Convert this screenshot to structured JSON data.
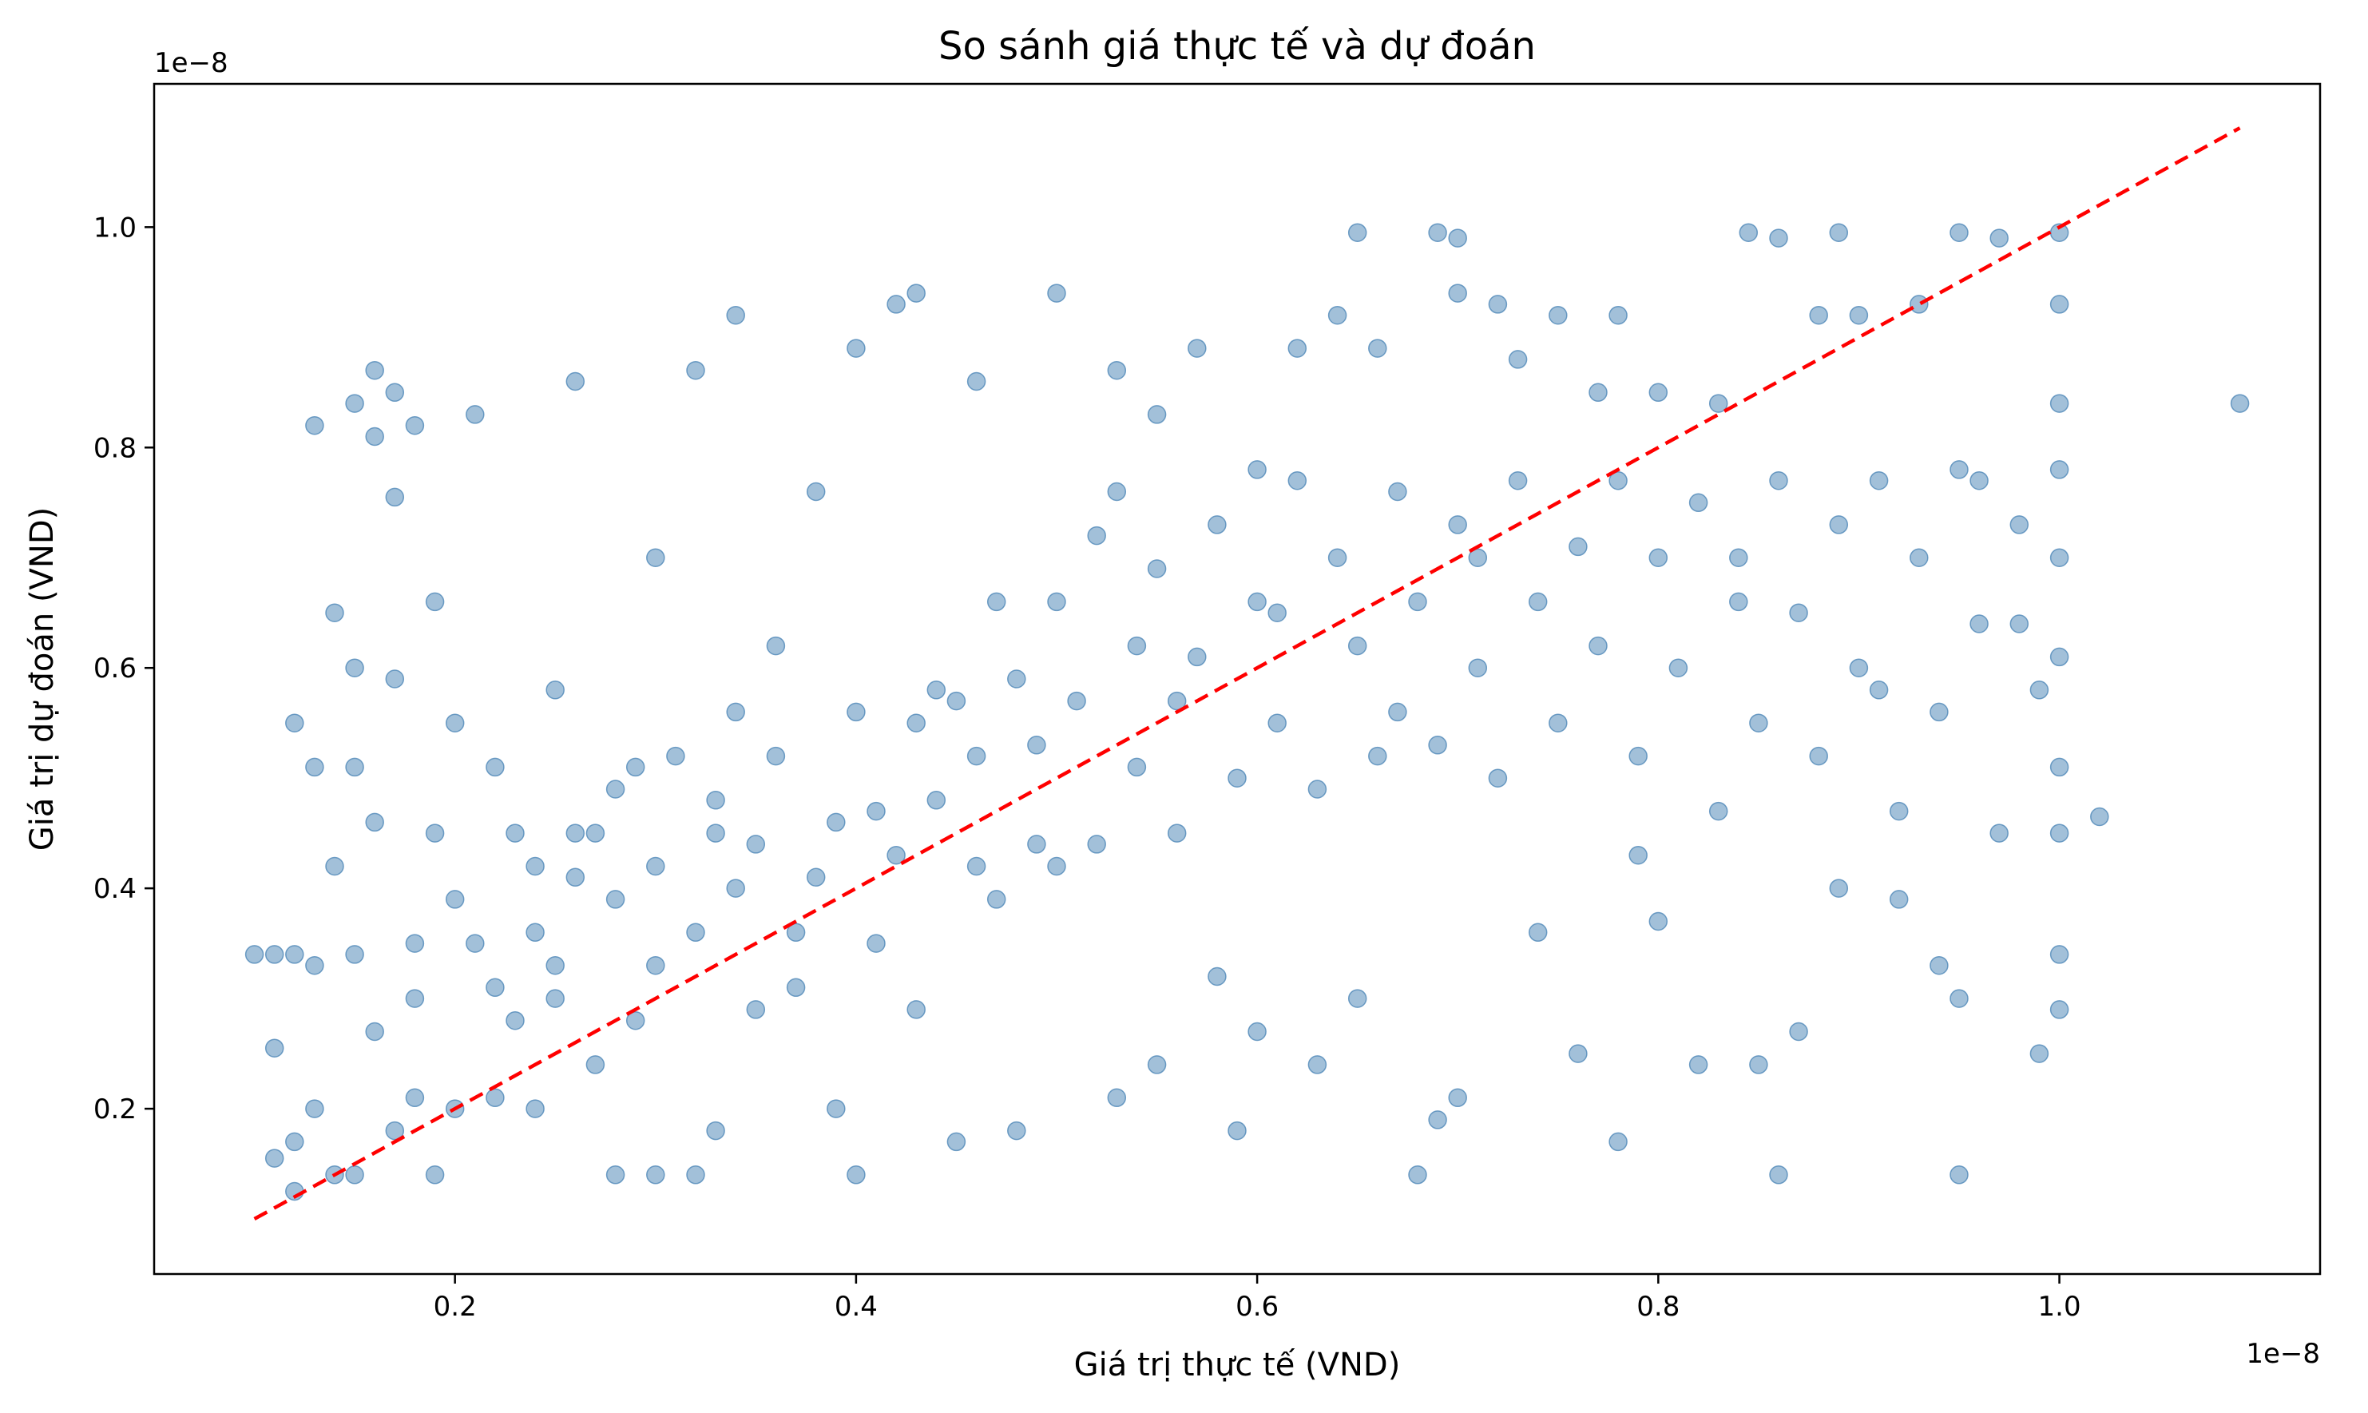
{
  "chart_data": {
    "type": "scatter",
    "title": "So sánh giá thực tế và dự đoán",
    "xlabel": "Giá trị thực tế (VND)",
    "ylabel": "Giá trị dự đoán (VND)",
    "x_offset_label": "1e−8",
    "y_offset_label": "1e−8",
    "xlim": [
      0.05,
      1.13
    ],
    "ylim": [
      0.05,
      1.13
    ],
    "xticks": [
      0.2,
      0.4,
      0.6,
      0.8,
      1.0
    ],
    "yticks": [
      0.2,
      0.4,
      0.6,
      0.8,
      1.0
    ],
    "xtick_labels": [
      "0.2",
      "0.4",
      "0.6",
      "0.8",
      "1.0"
    ],
    "ytick_labels": [
      "0.2",
      "0.4",
      "0.6",
      "0.8",
      "1.0"
    ],
    "grid": false,
    "point_color": "#4682b4",
    "point_alpha": 0.5,
    "reference_line": {
      "x": [
        0.1,
        1.09
      ],
      "y": [
        0.1,
        1.09
      ],
      "color": "#ff0000",
      "style": "dashed"
    },
    "points": [
      [
        0.1,
        0.34
      ],
      [
        0.11,
        0.34
      ],
      [
        0.11,
        0.155
      ],
      [
        0.11,
        0.255
      ],
      [
        0.12,
        0.125
      ],
      [
        0.12,
        0.17
      ],
      [
        0.12,
        0.34
      ],
      [
        0.12,
        0.55
      ],
      [
        0.13,
        0.82
      ],
      [
        0.13,
        0.51
      ],
      [
        0.13,
        0.2
      ],
      [
        0.13,
        0.33
      ],
      [
        0.14,
        0.14
      ],
      [
        0.14,
        0.42
      ],
      [
        0.14,
        0.65
      ],
      [
        0.15,
        0.14
      ],
      [
        0.15,
        0.51
      ],
      [
        0.15,
        0.34
      ],
      [
        0.15,
        0.84
      ],
      [
        0.15,
        0.6
      ],
      [
        0.16,
        0.87
      ],
      [
        0.16,
        0.81
      ],
      [
        0.16,
        0.46
      ],
      [
        0.16,
        0.27
      ],
      [
        0.17,
        0.18
      ],
      [
        0.17,
        0.85
      ],
      [
        0.17,
        0.755
      ],
      [
        0.17,
        0.59
      ],
      [
        0.18,
        0.21
      ],
      [
        0.18,
        0.35
      ],
      [
        0.18,
        0.3
      ],
      [
        0.18,
        0.82
      ],
      [
        0.19,
        0.14
      ],
      [
        0.19,
        0.66
      ],
      [
        0.19,
        0.45
      ],
      [
        0.2,
        0.2
      ],
      [
        0.2,
        0.39
      ],
      [
        0.2,
        0.55
      ],
      [
        0.21,
        0.83
      ],
      [
        0.21,
        0.35
      ],
      [
        0.22,
        0.21
      ],
      [
        0.22,
        0.51
      ],
      [
        0.23,
        0.45
      ],
      [
        0.24,
        0.42
      ],
      [
        0.24,
        0.2
      ],
      [
        0.25,
        0.33
      ],
      [
        0.25,
        0.58
      ],
      [
        0.26,
        0.86
      ],
      [
        0.26,
        0.45
      ],
      [
        0.27,
        0.24
      ],
      [
        0.28,
        0.14
      ],
      [
        0.28,
        0.39
      ],
      [
        0.29,
        0.51
      ],
      [
        0.3,
        0.14
      ],
      [
        0.3,
        0.33
      ],
      [
        0.3,
        0.7
      ],
      [
        0.32,
        0.14
      ],
      [
        0.32,
        0.87
      ],
      [
        0.33,
        0.18
      ],
      [
        0.33,
        0.48
      ],
      [
        0.34,
        0.92
      ],
      [
        0.34,
        0.56
      ],
      [
        0.35,
        0.29
      ],
      [
        0.36,
        0.62
      ],
      [
        0.37,
        0.36
      ],
      [
        0.38,
        0.76
      ],
      [
        0.39,
        0.2
      ],
      [
        0.4,
        0.14
      ],
      [
        0.4,
        0.89
      ],
      [
        0.41,
        0.47
      ],
      [
        0.42,
        0.93
      ],
      [
        0.43,
        0.94
      ],
      [
        0.43,
        0.29
      ],
      [
        0.44,
        0.58
      ],
      [
        0.45,
        0.17
      ],
      [
        0.46,
        0.86
      ],
      [
        0.46,
        0.42
      ],
      [
        0.47,
        0.66
      ],
      [
        0.48,
        0.18
      ],
      [
        0.49,
        0.53
      ],
      [
        0.5,
        0.94
      ],
      [
        0.5,
        0.42
      ],
      [
        0.52,
        0.72
      ],
      [
        0.53,
        0.87
      ],
      [
        0.53,
        0.21
      ],
      [
        0.54,
        0.62
      ],
      [
        0.55,
        0.83
      ],
      [
        0.55,
        0.24
      ],
      [
        0.56,
        0.57
      ],
      [
        0.57,
        0.89
      ],
      [
        0.58,
        0.32
      ],
      [
        0.59,
        0.18
      ],
      [
        0.6,
        0.78
      ],
      [
        0.6,
        0.27
      ],
      [
        0.61,
        0.65
      ],
      [
        0.62,
        0.89
      ],
      [
        0.63,
        0.24
      ],
      [
        0.64,
        0.92
      ],
      [
        0.65,
        0.995
      ],
      [
        0.65,
        0.3
      ],
      [
        0.66,
        0.89
      ],
      [
        0.67,
        0.56
      ],
      [
        0.68,
        0.14
      ],
      [
        0.69,
        0.19
      ],
      [
        0.69,
        0.995
      ],
      [
        0.7,
        0.99
      ],
      [
        0.7,
        0.94
      ],
      [
        0.7,
        0.21
      ],
      [
        0.71,
        0.7
      ],
      [
        0.72,
        0.93
      ],
      [
        0.73,
        0.88
      ],
      [
        0.74,
        0.36
      ],
      [
        0.75,
        0.92
      ],
      [
        0.76,
        0.25
      ],
      [
        0.77,
        0.85
      ],
      [
        0.78,
        0.17
      ],
      [
        0.78,
        0.92
      ],
      [
        0.79,
        0.43
      ],
      [
        0.8,
        0.85
      ],
      [
        0.8,
        0.37
      ],
      [
        0.82,
        0.24
      ],
      [
        0.83,
        0.84
      ],
      [
        0.84,
        0.66
      ],
      [
        0.845,
        0.995
      ],
      [
        0.85,
        0.24
      ],
      [
        0.86,
        0.99
      ],
      [
        0.86,
        0.14
      ],
      [
        0.87,
        0.27
      ],
      [
        0.88,
        0.92
      ],
      [
        0.89,
        0.995
      ],
      [
        0.89,
        0.4
      ],
      [
        0.9,
        0.92
      ],
      [
        0.91,
        0.58
      ],
      [
        0.92,
        0.39
      ],
      [
        0.93,
        0.93
      ],
      [
        0.94,
        0.33
      ],
      [
        0.95,
        0.995
      ],
      [
        0.95,
        0.14
      ],
      [
        0.95,
        0.3
      ],
      [
        0.96,
        0.77
      ],
      [
        0.97,
        0.99
      ],
      [
        0.98,
        0.64
      ],
      [
        0.99,
        0.25
      ],
      [
        1.0,
        0.995
      ],
      [
        1.0,
        0.93
      ],
      [
        1.0,
        0.84
      ],
      [
        1.0,
        0.78
      ],
      [
        1.0,
        0.34
      ],
      [
        1.0,
        0.29
      ],
      [
        1.02,
        0.465
      ],
      [
        1.09,
        0.84
      ],
      [
        0.22,
        0.31
      ],
      [
        0.23,
        0.28
      ],
      [
        0.24,
        0.36
      ],
      [
        0.25,
        0.3
      ],
      [
        0.26,
        0.41
      ],
      [
        0.27,
        0.45
      ],
      [
        0.28,
        0.49
      ],
      [
        0.29,
        0.28
      ],
      [
        0.3,
        0.42
      ],
      [
        0.31,
        0.52
      ],
      [
        0.32,
        0.36
      ],
      [
        0.33,
        0.45
      ],
      [
        0.34,
        0.4
      ],
      [
        0.35,
        0.44
      ],
      [
        0.36,
        0.52
      ],
      [
        0.37,
        0.31
      ],
      [
        0.38,
        0.41
      ],
      [
        0.39,
        0.46
      ],
      [
        0.4,
        0.56
      ],
      [
        0.41,
        0.35
      ],
      [
        0.42,
        0.43
      ],
      [
        0.43,
        0.55
      ],
      [
        0.44,
        0.48
      ],
      [
        0.45,
        0.57
      ],
      [
        0.46,
        0.52
      ],
      [
        0.47,
        0.39
      ],
      [
        0.48,
        0.59
      ],
      [
        0.49,
        0.44
      ],
      [
        0.5,
        0.66
      ],
      [
        0.51,
        0.57
      ],
      [
        0.52,
        0.44
      ],
      [
        0.53,
        0.76
      ],
      [
        0.54,
        0.51
      ],
      [
        0.55,
        0.69
      ],
      [
        0.56,
        0.45
      ],
      [
        0.57,
        0.61
      ],
      [
        0.58,
        0.73
      ],
      [
        0.59,
        0.5
      ],
      [
        0.6,
        0.66
      ],
      [
        0.61,
        0.55
      ],
      [
        0.62,
        0.77
      ],
      [
        0.63,
        0.49
      ],
      [
        0.64,
        0.7
      ],
      [
        0.65,
        0.62
      ],
      [
        0.66,
        0.52
      ],
      [
        0.67,
        0.76
      ],
      [
        0.68,
        0.66
      ],
      [
        0.69,
        0.53
      ],
      [
        0.7,
        0.73
      ],
      [
        0.71,
        0.6
      ],
      [
        0.72,
        0.5
      ],
      [
        0.73,
        0.77
      ],
      [
        0.74,
        0.66
      ],
      [
        0.75,
        0.55
      ],
      [
        0.76,
        0.71
      ],
      [
        0.77,
        0.62
      ],
      [
        0.78,
        0.77
      ],
      [
        0.79,
        0.52
      ],
      [
        0.8,
        0.7
      ],
      [
        0.81,
        0.6
      ],
      [
        0.82,
        0.75
      ],
      [
        0.83,
        0.47
      ],
      [
        0.84,
        0.7
      ],
      [
        0.85,
        0.55
      ],
      [
        0.86,
        0.77
      ],
      [
        0.87,
        0.65
      ],
      [
        0.88,
        0.52
      ],
      [
        0.89,
        0.73
      ],
      [
        0.9,
        0.6
      ],
      [
        0.91,
        0.77
      ],
      [
        0.92,
        0.47
      ],
      [
        0.93,
        0.7
      ],
      [
        0.94,
        0.56
      ],
      [
        0.95,
        0.78
      ],
      [
        0.96,
        0.64
      ],
      [
        0.97,
        0.45
      ],
      [
        0.98,
        0.73
      ],
      [
        0.99,
        0.58
      ],
      [
        1.0,
        0.7
      ],
      [
        1.0,
        0.51
      ],
      [
        1.0,
        0.61
      ],
      [
        1.0,
        0.45
      ]
    ]
  }
}
